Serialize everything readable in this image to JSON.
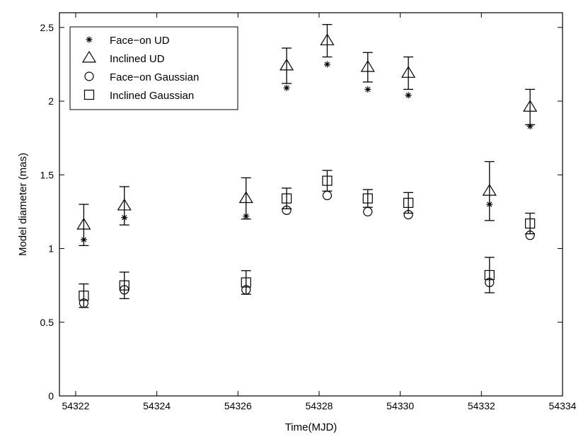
{
  "chart_data": {
    "type": "scatter",
    "title": "",
    "xlabel": "Time(MJD)",
    "ylabel": "Model diameter (mas)",
    "xlim": [
      54321.6,
      54334
    ],
    "ylim": [
      0,
      2.6
    ],
    "xticks": [
      54322,
      54324,
      54326,
      54328,
      54330,
      54332,
      54334
    ],
    "yticks": [
      0,
      0.5,
      1,
      1.5,
      2,
      2.5
    ],
    "xtick_labels": [
      "54322",
      "54324",
      "54326",
      "54328",
      "54330",
      "54332",
      "54334"
    ],
    "ytick_labels": [
      "0",
      "0.5",
      "1",
      "1.5",
      "2",
      "2.5"
    ],
    "grid": false,
    "legend_position": "top-left",
    "error_bars": true,
    "series": [
      {
        "name": "Face−on UD",
        "marker": "asterisk",
        "x": [
          54322.2,
          54323.2,
          54326.2,
          54327.2,
          54328.2,
          54329.2,
          54330.2,
          54332.2,
          54333.2
        ],
        "y": [
          1.06,
          1.21,
          1.22,
          2.09,
          2.25,
          2.08,
          2.04,
          1.3,
          1.83
        ]
      },
      {
        "name": "Inclined UD",
        "marker": "triangle",
        "x": [
          54322.2,
          54323.2,
          54326.2,
          54327.2,
          54328.2,
          54329.2,
          54330.2,
          54332.2,
          54333.2
        ],
        "y": [
          1.16,
          1.29,
          1.34,
          2.24,
          2.41,
          2.23,
          2.19,
          1.39,
          1.96
        ],
        "yerr": [
          0.14,
          0.13,
          0.14,
          0.12,
          0.11,
          0.1,
          0.11,
          0.2,
          0.12
        ]
      },
      {
        "name": "Face−on Gaussian",
        "marker": "circle",
        "x": [
          54322.2,
          54323.2,
          54326.2,
          54327.2,
          54328.2,
          54329.2,
          54330.2,
          54332.2,
          54333.2
        ],
        "y": [
          0.63,
          0.72,
          0.72,
          1.26,
          1.36,
          1.25,
          1.23,
          0.77,
          1.09
        ]
      },
      {
        "name": "Inclined Gaussian",
        "marker": "square",
        "x": [
          54322.2,
          54323.2,
          54326.2,
          54327.2,
          54328.2,
          54329.2,
          54330.2,
          54332.2,
          54333.2
        ],
        "y": [
          0.68,
          0.75,
          0.77,
          1.34,
          1.46,
          1.34,
          1.31,
          0.82,
          1.17
        ],
        "yerr": [
          0.08,
          0.09,
          0.08,
          0.07,
          0.07,
          0.06,
          0.07,
          0.12,
          0.07
        ]
      }
    ]
  },
  "colors": {
    "ink": "#000000",
    "background": "#ffffff"
  }
}
